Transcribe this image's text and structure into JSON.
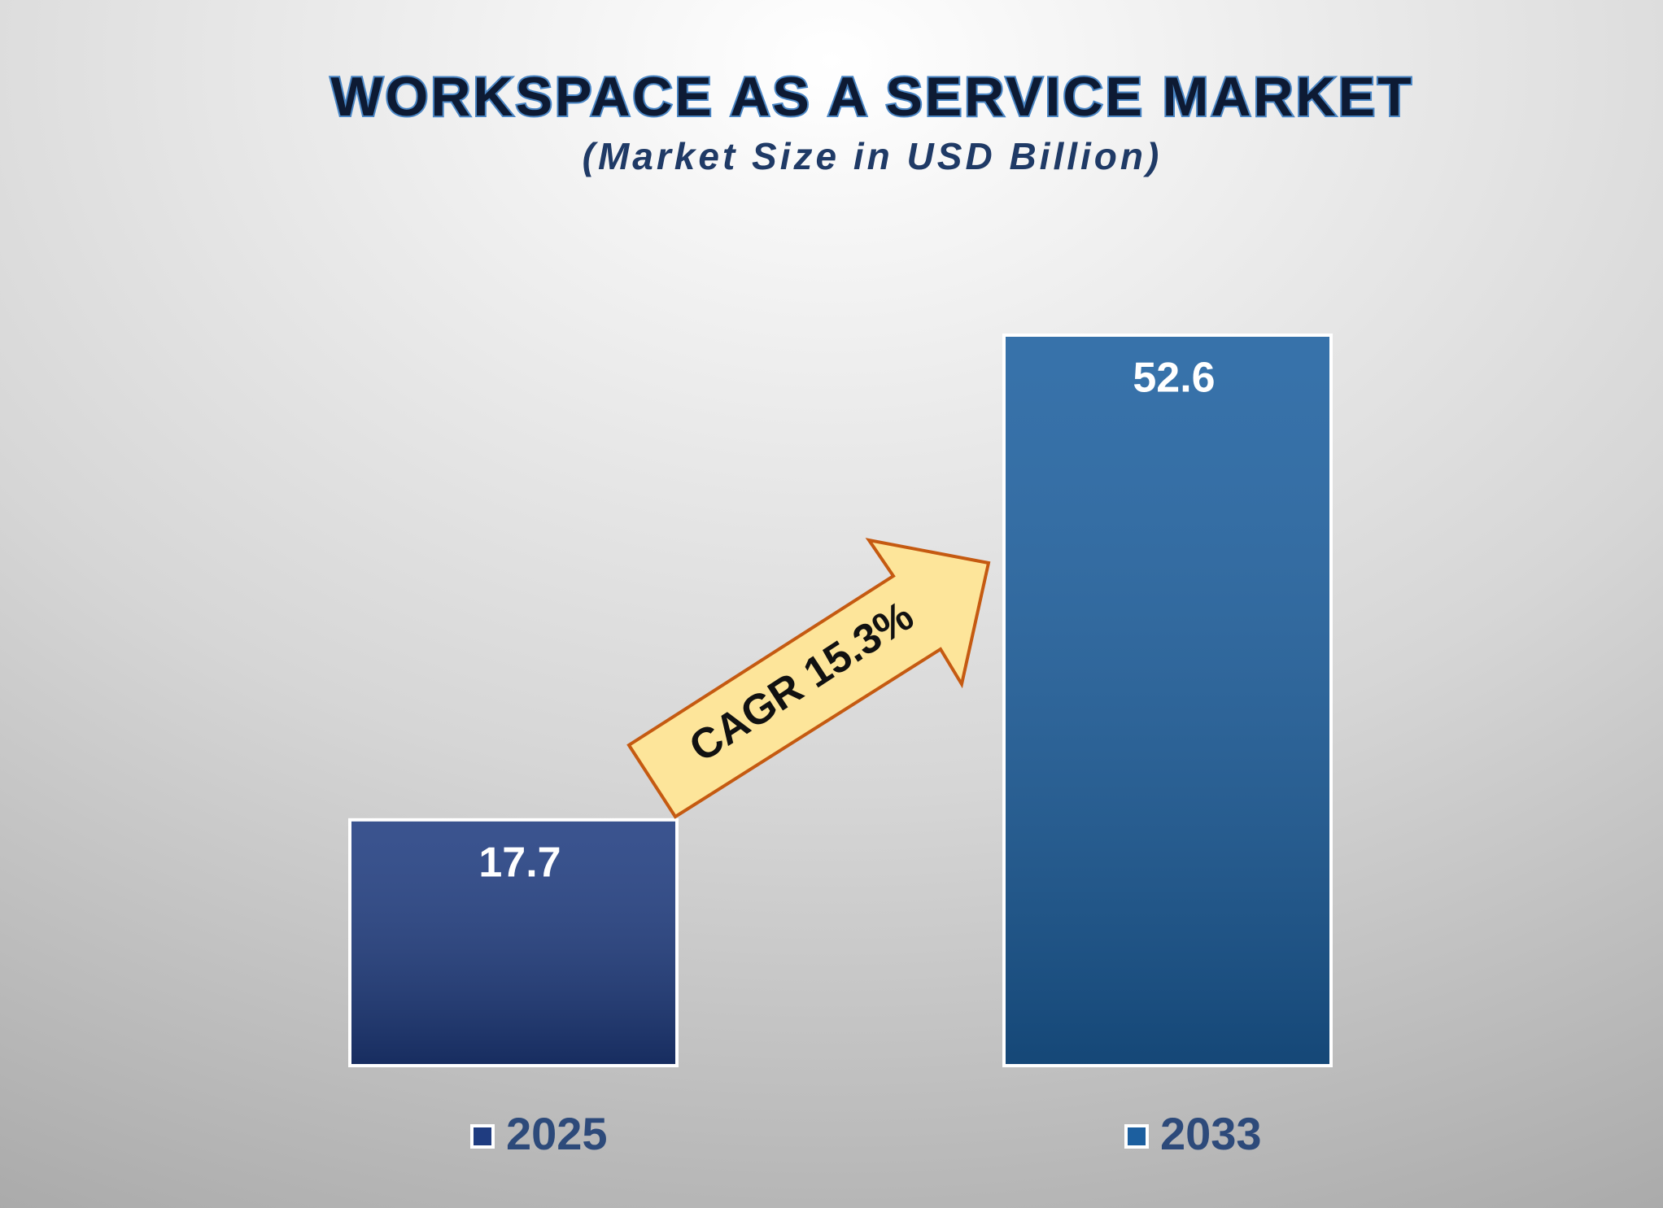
{
  "chart_data": {
    "type": "bar",
    "title": "WORKSPACE AS A SERVICE MARKET",
    "subtitle": "(Market Size in USD Billion)",
    "categories": [
      "2025",
      "2033"
    ],
    "values": [
      17.7,
      52.6
    ],
    "colors": [
      "#1f3c80",
      "#1c5f9f"
    ],
    "annotation": "CAGR 15.3%"
  }
}
